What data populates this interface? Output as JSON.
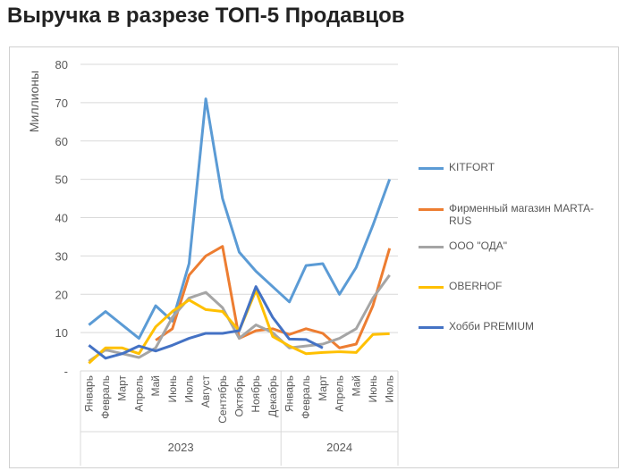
{
  "title": "Выручка в разрезе ТОП-5 Продавцов",
  "chart_data": {
    "type": "line",
    "ylabel": "Миллионы",
    "ylim": [
      0,
      80
    ],
    "yticks": [
      "-",
      "10",
      "20",
      "30",
      "40",
      "50",
      "60",
      "70",
      "80"
    ],
    "grid": true,
    "legend_position": "right",
    "x": [
      "Январь",
      "Февраль",
      "Март",
      "Апрель",
      "Май",
      "Июнь",
      "Июль",
      "Август",
      "Сентябрь",
      "Октябрь",
      "Ноябрь",
      "Декабрь",
      "Январь",
      "Февраль",
      "Март",
      "Апрель",
      "Май",
      "Июнь",
      "Июль"
    ],
    "year_groups": [
      {
        "label": "2023",
        "count": 12
      },
      {
        "label": "2024",
        "count": 7
      }
    ],
    "series": [
      {
        "name": "KITFORT",
        "color": "#5B9BD5",
        "values": [
          12,
          15.5,
          12,
          8.5,
          17,
          13,
          28,
          71,
          45,
          31,
          26,
          22,
          18,
          27.5,
          28,
          20,
          27,
          38,
          50
        ]
      },
      {
        "name": "Фирменный магазин MARTA-RUS",
        "color": "#ED7D31",
        "values": [
          null,
          null,
          null,
          null,
          8,
          11,
          25,
          30,
          32.5,
          8.5,
          10.5,
          11,
          9.5,
          11,
          9.8,
          6,
          7,
          17,
          32
        ]
      },
      {
        "name": "ООО \"ОДА\"",
        "color": "#A5A5A5",
        "values": [
          2.5,
          5.5,
          4.5,
          3.5,
          6,
          14,
          19,
          20.5,
          16.5,
          8.5,
          12,
          10,
          6,
          6.5,
          7,
          8.5,
          11,
          19,
          25
        ]
      },
      {
        "name": "OBERHOF",
        "color": "#FFC000",
        "values": [
          2,
          6,
          6,
          4.5,
          11.5,
          15.5,
          18.5,
          16,
          15.5,
          10.5,
          21,
          9,
          6.5,
          4.5,
          4.8,
          5,
          4.8,
          9.5,
          9.7
        ]
      },
      {
        "name": "Хобби PREMIUM",
        "color": "#4472C4",
        "values": [
          6.7,
          3.3,
          4.5,
          6.5,
          5.2,
          6.7,
          8.5,
          9.8,
          9.8,
          10.5,
          22,
          14,
          8.3,
          8.2,
          6,
          null,
          null,
          null,
          null
        ]
      }
    ]
  }
}
